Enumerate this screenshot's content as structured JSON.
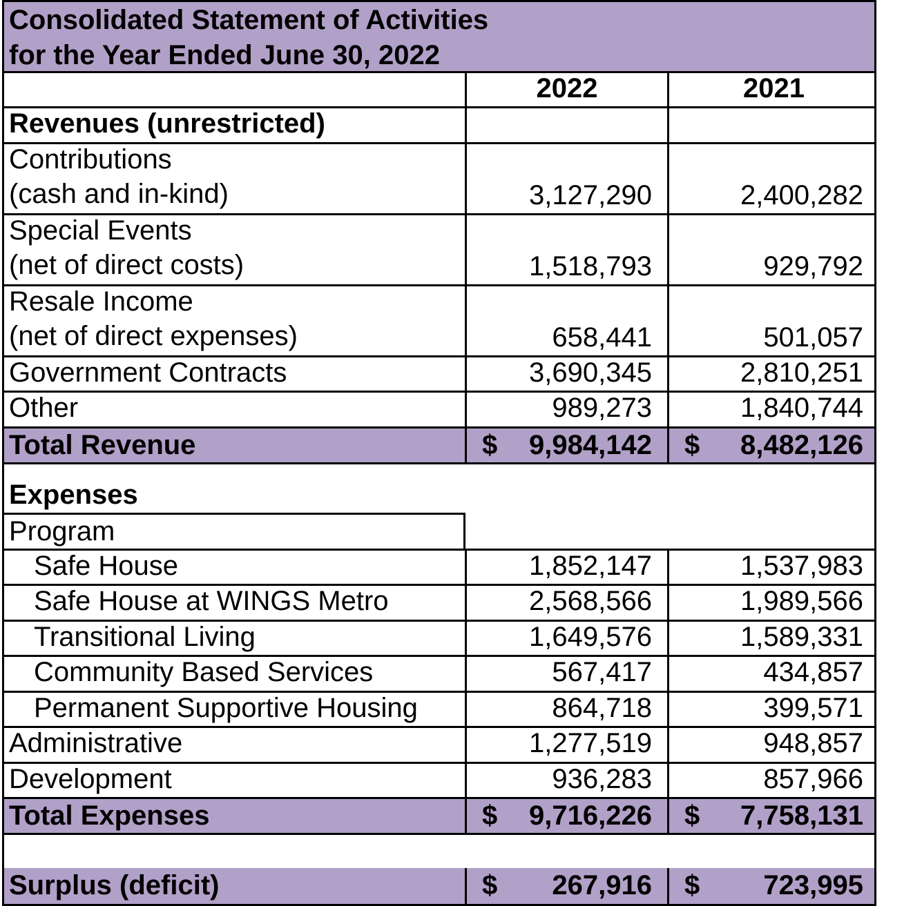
{
  "title": {
    "line1": "Consolidated Statement of Activities",
    "line2": "for the Year Ended June 30, 2022"
  },
  "columns": [
    "2022",
    "2021"
  ],
  "revenues": {
    "heading": "Revenues (unrestricted)",
    "rows": [
      {
        "label1": "Contributions",
        "label2": "(cash and in-kind)",
        "v2022": "3,127,290",
        "v2021": "2,400,282"
      },
      {
        "label1": "Special Events",
        "label2": "(net of direct costs)",
        "v2022": "1,518,793",
        "v2021": "929,792"
      },
      {
        "label1": "Resale Income",
        "label2": "(net of direct expenses)",
        "v2022": "658,441",
        "v2021": "501,057"
      },
      {
        "label1": "Government Contracts",
        "v2022": "3,690,345",
        "v2021": "2,810,251"
      },
      {
        "label1": "Other",
        "v2022": "989,273",
        "v2021": "1,840,744"
      }
    ],
    "total": {
      "label": "Total Revenue",
      "currency": "$",
      "v2022": "9,984,142",
      "v2021": "8,482,126"
    }
  },
  "expenses": {
    "heading": "Expenses",
    "program_label": "Program",
    "program_rows": [
      {
        "label": "Safe House",
        "v2022": "1,852,147",
        "v2021": "1,537,983"
      },
      {
        "label": "Safe House at WINGS Metro",
        "v2022": "2,568,566",
        "v2021": "1,989,566"
      },
      {
        "label": "Transitional Living",
        "v2022": "1,649,576",
        "v2021": "1,589,331"
      },
      {
        "label": "Community Based Services",
        "v2022": "567,417",
        "v2021": "434,857"
      },
      {
        "label": "Permanent Supportive Housing",
        "v2022": "864,718",
        "v2021": "399,571"
      }
    ],
    "other_rows": [
      {
        "label": "Administrative",
        "v2022": "1,277,519",
        "v2021": "948,857"
      },
      {
        "label": "Development",
        "v2022": "936,283",
        "v2021": "857,966"
      }
    ],
    "total": {
      "label": "Total Expenses",
      "currency": "$",
      "v2022": "9,716,226",
      "v2021": "7,758,131"
    }
  },
  "surplus": {
    "label": "Surplus (deficit)",
    "currency": "$",
    "v2022": "267,916",
    "v2021": "723,995"
  },
  "colors": {
    "header_fill": "#b1a0c7",
    "border": "#000000"
  }
}
